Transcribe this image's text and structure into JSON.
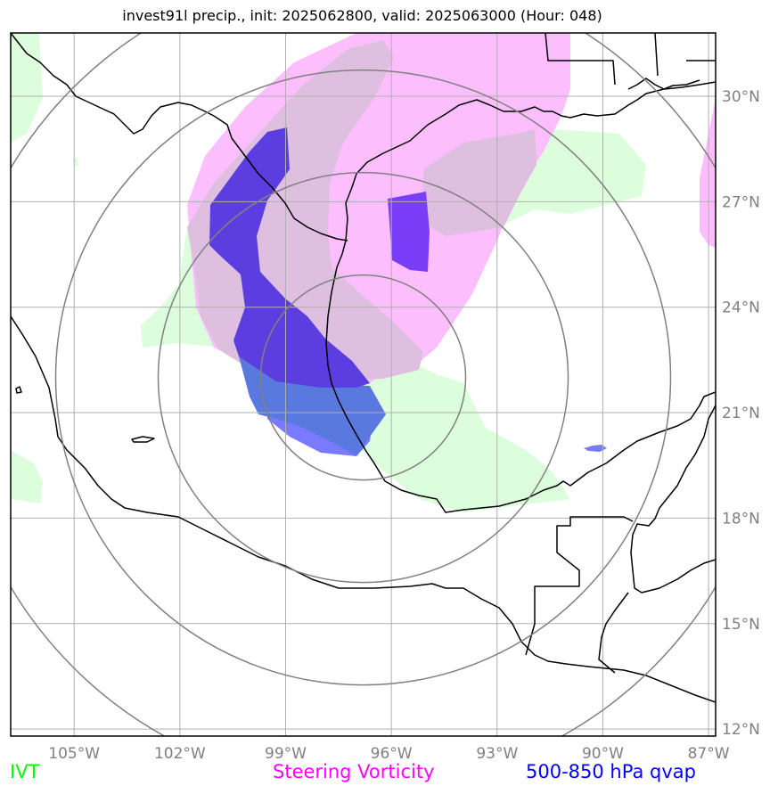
{
  "title": "invest91l precip., init: 2025062800, valid: 2025063000 (Hour: 048)",
  "axes": {
    "lon_ticks": [
      "105°W",
      "102°W",
      "99°W",
      "96°W",
      "93°W",
      "90°W",
      "87°W"
    ],
    "lat_ticks": [
      "30°N",
      "27°N",
      "24°N",
      "21°N",
      "18°N",
      "15°N",
      "12°N"
    ],
    "lon_range_deg": [
      -106.8,
      -86.8
    ],
    "lat_range_deg": [
      11.8,
      31.8
    ],
    "grid": true
  },
  "legend": [
    {
      "key": "ivt",
      "label": "IVT",
      "color": "#00ff00"
    },
    {
      "key": "vort",
      "label": "Steering Vorticity",
      "color": "#ff00ff"
    },
    {
      "key": "qvap",
      "label": "500-850 hPa qvap",
      "color": "#0000ff"
    }
  ],
  "colors": {
    "ivt_fill": "#ddfedd",
    "vort_fill": "#fdbefd",
    "overlap_fill": "#dfbfdf",
    "qvap_dark": "#5b3de0",
    "qvap_violet": "#7a3ef8",
    "qvap_blue": "#5a79de",
    "qvap_light": "#7a7aff",
    "range_rings": "#808080",
    "gridlines": "#b0b0b0",
    "coastlines": "#000000"
  },
  "range_rings": {
    "center_lon": -96.8,
    "center_lat": 22.0,
    "count": 4
  }
}
